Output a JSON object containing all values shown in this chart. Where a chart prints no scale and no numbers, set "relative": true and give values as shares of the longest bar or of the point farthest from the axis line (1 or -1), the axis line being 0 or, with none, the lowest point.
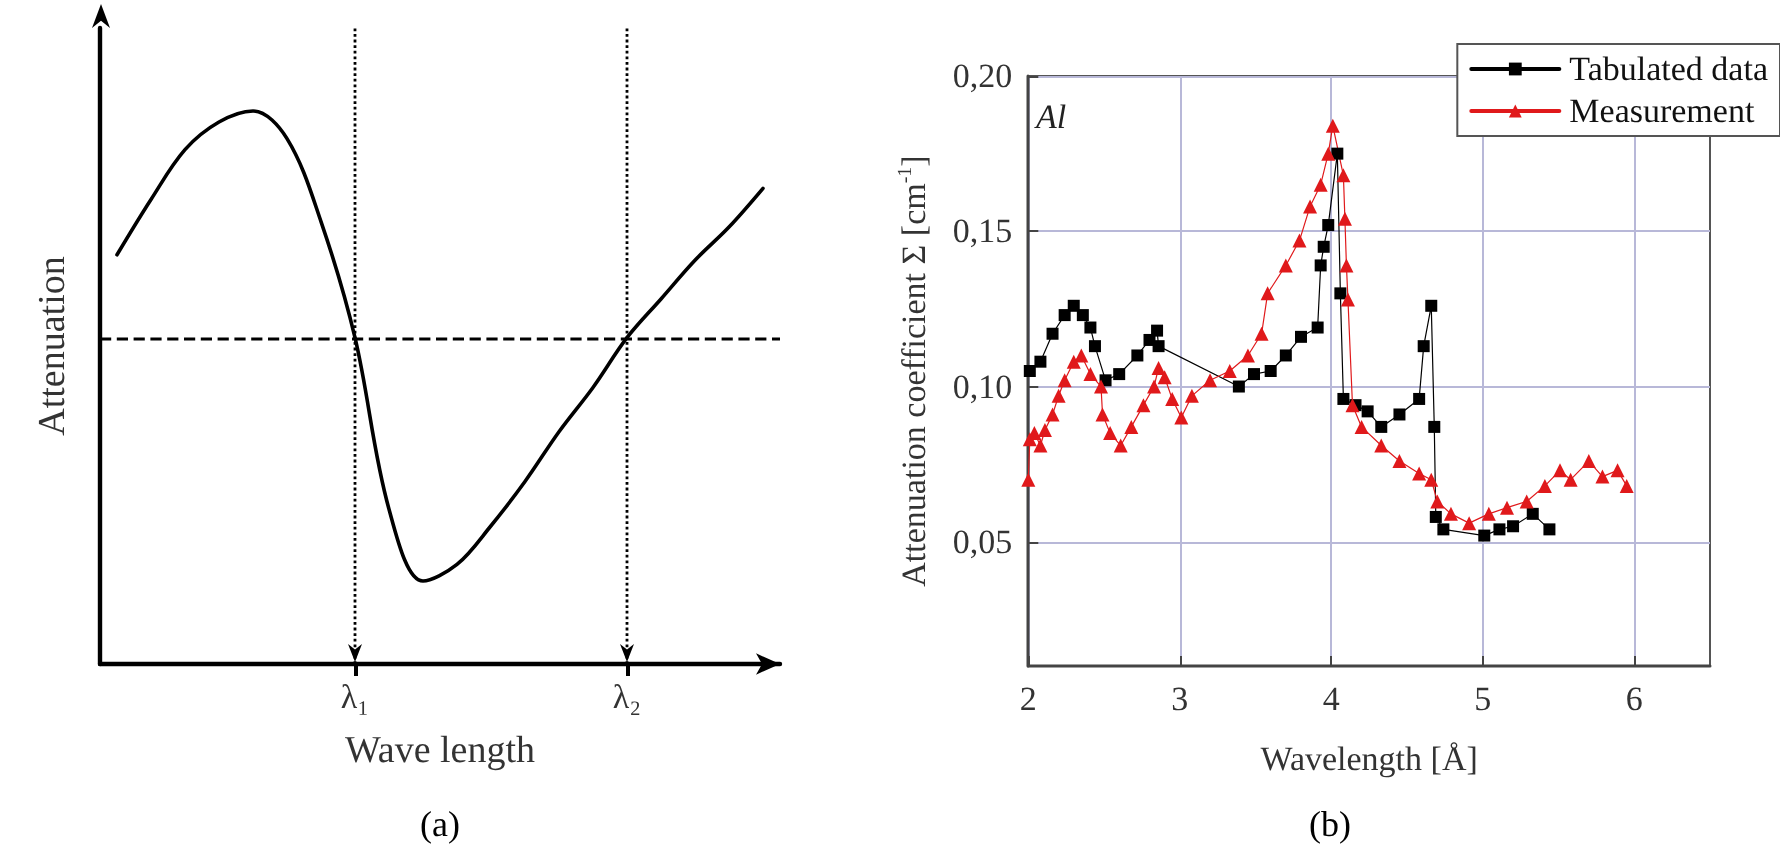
{
  "chart_data": [
    {
      "type": "line",
      "xlabel": "Wave length",
      "ylabel": "Attenuation",
      "relative": true,
      "annotations": [
        "(a)"
      ],
      "categories": [
        null,
        null,
        null,
        null,
        null,
        null,
        null,
        "λ₁",
        null,
        null,
        null,
        null,
        null,
        null,
        null,
        "λ₂",
        null,
        null,
        null,
        null
      ],
      "series": [
        {
          "color": "#000000",
          "values": [
            0.74,
            0.84,
            0.93,
            0.98,
            1,
            0.95,
            0.8,
            0.59,
            0.28,
            0.15,
            0.18,
            0.25,
            0.33,
            0.42,
            0.5,
            0.59,
            0.66,
            0.73,
            0.79,
            0.86
          ]
        }
      ],
      "ref_lines": [
        {
          "axis": "y",
          "value": 0.59,
          "line_style": "dashed",
          "color": "#000000"
        },
        {
          "axis": "x",
          "value": "λ₁",
          "line_style": "dotted",
          "color": "#000000"
        },
        {
          "axis": "x",
          "value": "λ₂",
          "line_style": "dotted",
          "color": "#000000"
        }
      ],
      "grid": false,
      "legend": false,
      "marker": "none",
      "line_style": "solid",
      "tick_labels": "x"
    },
    {
      "type": "line",
      "xlabel": "Wavelength [Å]",
      "ylabel": "Attenuation coefficient Σ [cm$^{-1}$]",
      "annotations": [
        "Al",
        "(b)"
      ],
      "series": [
        {
          "name": "Tabulated data",
          "color": "#000000",
          "marker": "square",
          "x": [
            2.01,
            2.08,
            2.16,
            2.24,
            2.3,
            2.36,
            2.41,
            2.44,
            2.51,
            2.6,
            2.72,
            2.8,
            2.85,
            2.86,
            3.39,
            3.49,
            3.6,
            3.7,
            3.8,
            3.91,
            3.93,
            3.95,
            3.98,
            4.04,
            4.06,
            4.08,
            4.16,
            4.24,
            4.33,
            4.45,
            4.58,
            4.61,
            4.66,
            4.68,
            4.69,
            4.74,
            5.01,
            5.11,
            5.2,
            5.33,
            5.44
          ],
          "values": [
            0.105,
            0.108,
            0.117,
            0.123,
            0.126,
            0.123,
            0.119,
            0.113,
            0.102,
            0.104,
            0.11,
            0.115,
            0.118,
            0.113,
            0.1,
            0.104,
            0.105,
            0.11,
            0.116,
            0.119,
            0.139,
            0.145,
            0.152,
            0.175,
            0.13,
            0.096,
            0.094,
            0.092,
            0.087,
            0.091,
            0.096,
            0.113,
            0.126,
            0.087,
            0.058,
            0.054,
            0.052,
            0.054,
            0.055,
            0.059,
            0.054
          ]
        },
        {
          "name": "Measurement",
          "color": "#e0191b",
          "marker": "triangle",
          "x": [
            2.0,
            2.01,
            2.04,
            2.08,
            2.11,
            2.16,
            2.2,
            2.24,
            2.3,
            2.35,
            2.41,
            2.48,
            2.49,
            2.54,
            2.61,
            2.68,
            2.76,
            2.83,
            2.86,
            2.9,
            2.95,
            3.01,
            3.08,
            3.2,
            3.33,
            3.45,
            3.54,
            3.58,
            3.7,
            3.79,
            3.86,
            3.93,
            3.98,
            4.01,
            4.08,
            4.09,
            4.1,
            4.11,
            4.14,
            4.2,
            4.33,
            4.45,
            4.58,
            4.66,
            4.7,
            4.79,
            4.91,
            5.04,
            5.16,
            5.29,
            5.41,
            5.51,
            5.58,
            5.7,
            5.79,
            5.89,
            5.95
          ],
          "values": [
            0.07,
            0.083,
            0.085,
            0.081,
            0.086,
            0.091,
            0.097,
            0.102,
            0.108,
            0.11,
            0.104,
            0.1,
            0.091,
            0.085,
            0.081,
            0.087,
            0.094,
            0.1,
            0.106,
            0.103,
            0.096,
            0.09,
            0.097,
            0.102,
            0.105,
            0.11,
            0.117,
            0.13,
            0.139,
            0.147,
            0.158,
            0.165,
            0.175,
            0.184,
            0.168,
            0.154,
            0.139,
            0.128,
            0.094,
            0.087,
            0.081,
            0.076,
            0.072,
            0.07,
            0.063,
            0.059,
            0.056,
            0.059,
            0.061,
            0.063,
            0.068,
            0.073,
            0.07,
            0.076,
            0.071,
            0.073,
            0.068
          ]
        }
      ],
      "xlim": [
        2,
        6.5
      ],
      "xticks": [
        2,
        3,
        4,
        5,
        6
      ],
      "ylim": [
        0.01,
        0.2
      ],
      "yticks": [
        {
          "value": 0.05,
          "label": "0,05"
        },
        {
          "value": 0.1,
          "label": "0,10"
        },
        {
          "value": 0.15,
          "label": "0,15"
        },
        {
          "value": 0.2,
          "label": "0,20"
        }
      ],
      "grid": true,
      "legend": "top right",
      "line_style": "solid"
    }
  ]
}
